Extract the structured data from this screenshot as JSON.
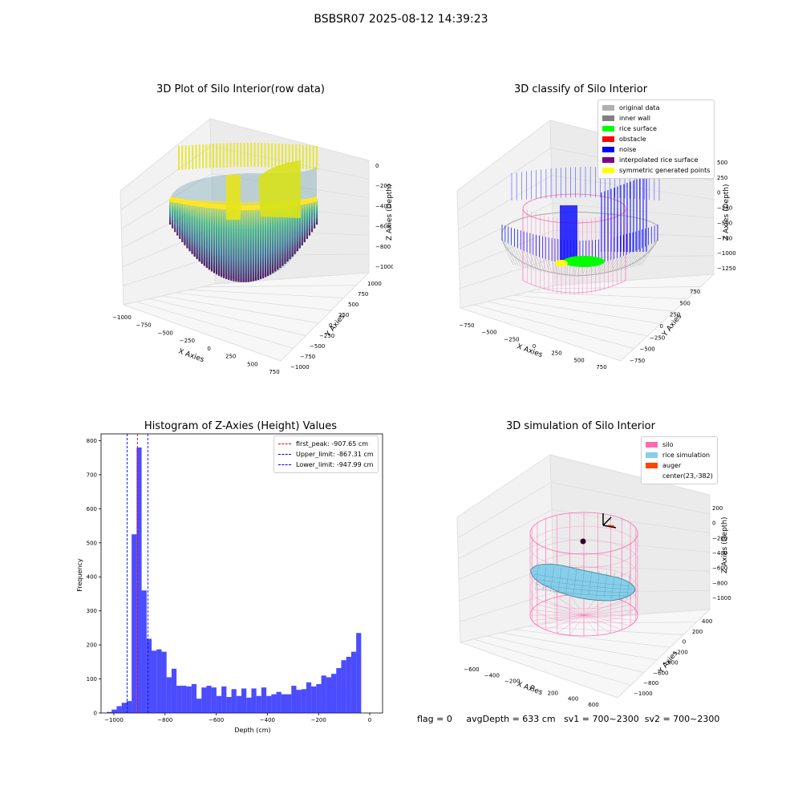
{
  "suptitle": "BSBSR07 2025-08-12 14:39:23",
  "status_line": {
    "flag": "flag = 0",
    "avg_depth": "avgDepth = 633 cm",
    "sv1": "sv1 = 700~2300",
    "sv2": "sv2 = 700~2300"
  },
  "chart_data": [
    {
      "type": "scatter",
      "projection": "3d",
      "title": "3D Plot of Silo Interior(row data)",
      "xlabel": "X Axies",
      "ylabel": "Y Axies",
      "zlabel": "Z Axies (Depth)",
      "xticks": [
        "−1000",
        "−750",
        "−500",
        "−250",
        "0",
        "250",
        "500",
        "750"
      ],
      "yticks": [
        "1000",
        "750",
        "500",
        "250",
        "0",
        "−250",
        "−500",
        "−750",
        "−1000"
      ],
      "zticks": [
        "0",
        "−200",
        "−400",
        "−600",
        "−800",
        "−1000"
      ],
      "xlim": [
        -1000,
        1000
      ],
      "ylim": [
        -1000,
        1000
      ],
      "zlim": [
        -1050,
        50
      ],
      "colormap": "viridis",
      "colors": {
        "yellow": "#fde725",
        "green": "#5ec962",
        "teal": "#21918c",
        "blue": "#3b528b",
        "purple": "#440154"
      }
    },
    {
      "type": "scatter",
      "projection": "3d",
      "title": "3D classify of Silo Interior",
      "xlabel": "X Axies",
      "ylabel": "Y Axies",
      "zlabel": "Z Axies (Depth)",
      "xticks": [
        "−750",
        "−500",
        "−250",
        "0",
        "250",
        "500",
        "750"
      ],
      "yticks": [
        "750",
        "500",
        "250",
        "0",
        "−250",
        "−500",
        "−750"
      ],
      "zticks": [
        "500",
        "250",
        "0",
        "−250",
        "−500",
        "−750",
        "−1000",
        "−1250"
      ],
      "zticks_partial_note": "",
      "legend_position": "top-right",
      "legend": [
        {
          "label": "original data",
          "color": "#b0b0b0"
        },
        {
          "label": "inner wall",
          "color": "#808080"
        },
        {
          "label": "rice surface",
          "color": "#00ff00"
        },
        {
          "label": "obstacle",
          "color": "#ff0000"
        },
        {
          "label": "noise",
          "color": "#0000ff"
        },
        {
          "label": "interpolated rice surface",
          "color": "#800080"
        },
        {
          "label": "symmetric generated points",
          "color": "#ffff00"
        }
      ],
      "extra_colors": {
        "silo_outline": "#ff69b4"
      }
    },
    {
      "type": "bar",
      "title": "Histogram of Z-Axies (Height) Values",
      "xlabel": "Depth (cm)",
      "ylabel": "Frequency",
      "xlim": [
        -1050,
        50
      ],
      "ylim": [
        0,
        820
      ],
      "xticks": [
        -1000,
        -800,
        -600,
        -400,
        -200,
        0
      ],
      "xtick_labels": [
        "−1000",
        "−800",
        "−600",
        "−400",
        "−200",
        "0"
      ],
      "yticks": [
        0,
        100,
        200,
        300,
        400,
        500,
        600,
        700,
        800
      ],
      "bar_color": "#0000ff",
      "bin_width": 19.5,
      "bin_left_edges": [
        -1028,
        -1008.5,
        -989,
        -969.5,
        -950,
        -930.5,
        -911,
        -891.5,
        -872,
        -852.5,
        -833,
        -813.5,
        -794,
        -774.5,
        -755,
        -735.5,
        -716,
        -696.5,
        -677,
        -657.5,
        -638,
        -618.5,
        -599,
        -579.5,
        -560,
        -540.5,
        -521,
        -501.5,
        -482,
        -462.5,
        -443,
        -423.5,
        -404,
        -384.5,
        -365,
        -345.5,
        -326,
        -306.5,
        -287,
        -267.5,
        -248,
        -228.5,
        -209,
        -189.5,
        -170,
        -150.5,
        -131,
        -111.5,
        -92,
        -72.5,
        -53,
        -33.5,
        -14
      ],
      "values": [
        3,
        10,
        20,
        30,
        35,
        525,
        780,
        360,
        218,
        183,
        187,
        180,
        105,
        130,
        80,
        80,
        78,
        85,
        42,
        75,
        80,
        75,
        50,
        78,
        47,
        70,
        50,
        72,
        45,
        72,
        50,
        75,
        50,
        55,
        62,
        55,
        55,
        80,
        68,
        70,
        90,
        78,
        85,
        110,
        105,
        115,
        132,
        155,
        165,
        180,
        235,
        0,
        0
      ],
      "vlines": [
        {
          "label": "first_peak: -907.65 cm",
          "x": -907.65,
          "color": "#ff0000"
        },
        {
          "label": "Upper_limit: -867.31 cm",
          "x": -867.31,
          "color": "#0000ff"
        },
        {
          "label": "Lower_limit: -947.99 cm",
          "x": -947.99,
          "color": "#0000ff"
        }
      ],
      "legend_position": "top-right"
    },
    {
      "type": "scatter",
      "projection": "3d",
      "title": "3D simulation of Silo Interior",
      "xlabel": "X Axies",
      "ylabel": "Y Axies",
      "zlabel": "Z Axies (Depth)",
      "xticks": [
        "−600",
        "−400",
        "−200",
        "0",
        "200",
        "400",
        "600"
      ],
      "yticks": [
        "400",
        "200",
        "0",
        "−200",
        "−400",
        "−600",
        "−800",
        "−1000"
      ],
      "zticks": [
        "200",
        "0",
        "−200",
        "−400",
        "−600",
        "−800",
        "−1000"
      ],
      "legend_position": "top-right",
      "legend": [
        {
          "label": "silo",
          "color": "#ff69b4"
        },
        {
          "label": "rice simulation",
          "color": "#87ceeb"
        },
        {
          "label": "auger",
          "color": "#ff4500"
        },
        {
          "label": "center(23,-382)",
          "color": ""
        }
      ],
      "center": {
        "x": 23,
        "y": -382
      }
    }
  ]
}
